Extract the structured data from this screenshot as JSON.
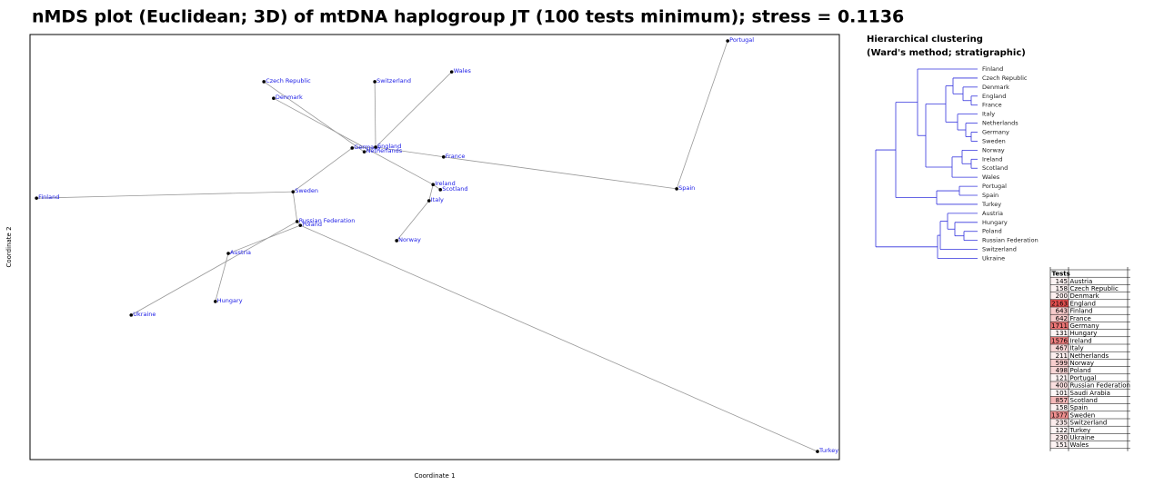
{
  "chart_data": [
    {
      "type": "scatter",
      "title": "nMDS plot (Euclidean; 3D) of mtDNA haplogroup JT (100 tests minimum); stress = 0.1136",
      "xlabel": "Coordinate 1",
      "ylabel": "Coordinate 2",
      "xlim": [
        0,
        100
      ],
      "ylim": [
        0,
        100
      ],
      "point_color": "#000000",
      "label_color": "#1a1ae6",
      "edge_color": "#999999",
      "labels": [
        "Portugal",
        "Wales",
        "Czech Republic",
        "Switzerland",
        "Denmark",
        "Germany",
        "England",
        "Netherlands",
        "France",
        "Ireland",
        "Scotland",
        "Spain",
        "Finland",
        "Sweden",
        "Italy",
        "Russian Federation",
        "Poland",
        "Norway",
        "Austria",
        "Hungary",
        "Ukraine",
        "Turkey"
      ],
      "x": [
        86.2,
        52.1,
        28.9,
        42.6,
        30.1,
        39.8,
        42.7,
        41.3,
        51.1,
        49.8,
        50.7,
        79.9,
        0.8,
        32.5,
        49.3,
        33.0,
        33.4,
        45.3,
        24.5,
        22.9,
        12.5,
        97.3
      ],
      "y": [
        98.5,
        91.2,
        88.9,
        88.9,
        85.0,
        73.3,
        73.5,
        72.4,
        71.2,
        64.7,
        63.5,
        63.7,
        61.5,
        63.0,
        60.9,
        56.0,
        55.1,
        51.5,
        48.5,
        37.2,
        34.0,
        1.9
      ],
      "edges": [
        [
          "Portugal",
          "Spain"
        ],
        [
          "Spain",
          "France"
        ],
        [
          "France",
          "England"
        ],
        [
          "Wales",
          "England"
        ],
        [
          "Switzerland",
          "England"
        ],
        [
          "England",
          "Germany"
        ],
        [
          "Germany",
          "Sweden"
        ],
        [
          "Sweden",
          "Finland"
        ],
        [
          "Sweden",
          "Russian Federation"
        ],
        [
          "Russian Federation",
          "Ukraine"
        ],
        [
          "Russian Federation",
          "Poland"
        ],
        [
          "Poland",
          "Austria"
        ],
        [
          "Austria",
          "Hungary"
        ],
        [
          "Poland",
          "Turkey"
        ],
        [
          "Czech Republic",
          "Netherlands"
        ],
        [
          "Netherlands",
          "England"
        ],
        [
          "Denmark",
          "Ireland"
        ],
        [
          "Ireland",
          "Scotland"
        ],
        [
          "Italy",
          "Ireland"
        ],
        [
          "Italy",
          "Norway"
        ]
      ]
    },
    {
      "type": "dendrogram",
      "title": "Hierarchical clustering",
      "subtitle": "(Ward's method; stratigraphic)",
      "color": "#3333dd",
      "tree": {
        "height": 112,
        "children": [
          {
            "height": 90,
            "children": [
              {
                "height": 66,
                "children": [
                  "Finland",
                  {
                    "height": 57,
                    "children": [
                      {
                        "height": 35,
                        "children": [
                          {
                            "height": 27,
                            "children": [
                              "Czech Republic",
                              {
                                "height": 16,
                                "children": [
                                  "Denmark",
                                  {
                                    "height": 7,
                                    "children": [
                                      "England",
                                      "France"
                                    ]
                                  }
                                ]
                              }
                            ]
                          },
                          {
                            "height": 22,
                            "children": [
                              "Italy",
                              {
                                "height": 13,
                                "children": [
                                  "Netherlands",
                                  {
                                    "height": 7,
                                    "children": [
                                      "Germany",
                                      "Sweden"
                                    ]
                                  }
                                ]
                              }
                            ]
                          }
                        ]
                      },
                      {
                        "height": 28,
                        "children": [
                          {
                            "height": 17,
                            "children": [
                              "Norway",
                              {
                                "height": 7,
                                "children": [
                                  "Ireland",
                                  "Scotland"
                                ]
                              }
                            ]
                          },
                          "Wales"
                        ]
                      }
                    ]
                  }
                ]
              },
              {
                "height": 45,
                "children": [
                  {
                    "height": 20,
                    "children": [
                      "Portugal",
                      "Spain"
                    ]
                  },
                  "Turkey"
                ]
              }
            ]
          },
          {
            "height": 44,
            "children": [
              {
                "height": 41,
                "children": [
                  {
                    "height": 33,
                    "children": [
                      "Austria",
                      {
                        "height": 25,
                        "children": [
                          "Hungary",
                          {
                            "height": 15,
                            "children": [
                              "Poland",
                              "Russian Federation"
                            ]
                          }
                        ]
                      }
                    ]
                  },
                  "Switzerland"
                ]
              },
              "Ukraine"
            ]
          }
        ]
      }
    }
  ],
  "table": {
    "header": [
      "Tests"
    ],
    "highlight": "#e03030",
    "rows": [
      [
        145,
        "Austria"
      ],
      [
        158,
        "Czech Republic"
      ],
      [
        200,
        "Denmark"
      ],
      [
        2163,
        "England"
      ],
      [
        643,
        "Finland"
      ],
      [
        642,
        "France"
      ],
      [
        1711,
        "Germany"
      ],
      [
        131,
        "Hungary"
      ],
      [
        1576,
        "Ireland"
      ],
      [
        467,
        "Italy"
      ],
      [
        211,
        "Netherlands"
      ],
      [
        599,
        "Norway"
      ],
      [
        498,
        "Poland"
      ],
      [
        121,
        "Portugal"
      ],
      [
        400,
        "Russian Federation"
      ],
      [
        101,
        "Saudi Arabia"
      ],
      [
        857,
        "Scotland"
      ],
      [
        158,
        "Spain"
      ],
      [
        1377,
        "Sweden"
      ],
      [
        235,
        "Switzerland"
      ],
      [
        122,
        "Turkey"
      ],
      [
        230,
        "Ukraine"
      ],
      [
        151,
        "Wales"
      ]
    ]
  }
}
